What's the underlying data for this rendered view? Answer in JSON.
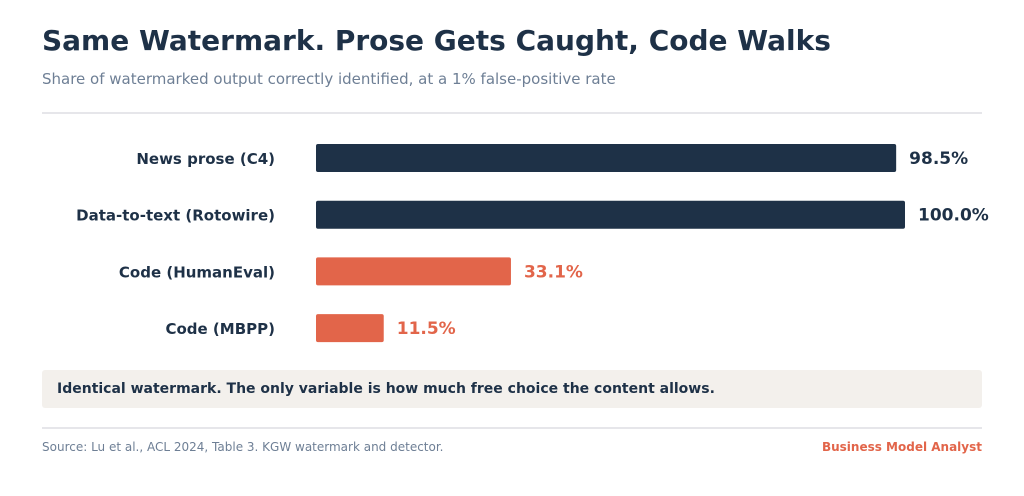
{
  "header": {
    "title": "Same Watermark. Prose Gets Caught, Code Walks",
    "subtitle": "Share of watermarked output correctly identified, at a 1% false-positive rate"
  },
  "chart_data": {
    "type": "bar",
    "orientation": "horizontal",
    "categories": [
      "News prose (C4)",
      "Data-to-text (Rotowire)",
      "Code (HumanEval)",
      "Code (MBPP)"
    ],
    "values": [
      98.5,
      100.0,
      33.1,
      11.5
    ],
    "value_labels": [
      "98.5%",
      "100.0%",
      "33.1%",
      "11.5%"
    ],
    "xlim": [
      0,
      100
    ],
    "bar_colors": [
      "#1e3147",
      "#1e3147",
      "#e2654a",
      "#e2654a"
    ],
    "grid": false,
    "legend": "none"
  },
  "callout": {
    "text": "Identical watermark. The only variable is how much free choice the content allows."
  },
  "footer": {
    "source": "Source: Lu et al., ACL 2024, Table 3. KGW watermark and detector.",
    "brand": "Business Model Analyst"
  },
  "colors": {
    "navy": "#1e3147",
    "accent": "#e2654a",
    "muted": "#6e7f95",
    "callout_bg": "#f3f0ec"
  }
}
